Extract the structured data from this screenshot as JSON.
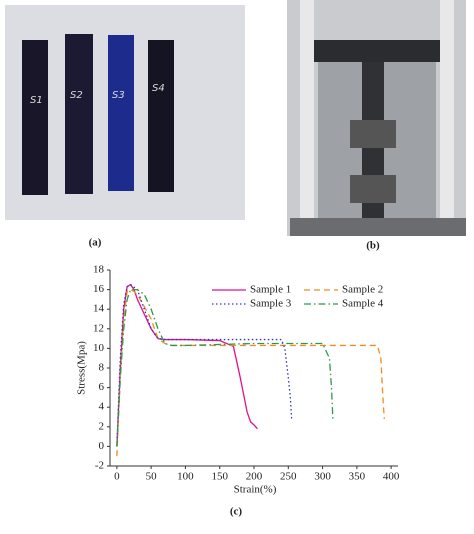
{
  "panels": {
    "a": "(a)",
    "b": "(b)",
    "c": "(c)"
  },
  "sample_strips": [
    "S1",
    "S2",
    "S3",
    "S4"
  ],
  "chart_data": {
    "type": "line",
    "xlabel": "Strain(%)",
    "ylabel": "Stress(Mpa)",
    "xlim": [
      -10,
      410
    ],
    "ylim": [
      -2,
      18
    ],
    "xticks": [
      0,
      50,
      100,
      150,
      200,
      250,
      300,
      350,
      400
    ],
    "yticks": [
      -2,
      0,
      2,
      4,
      6,
      8,
      10,
      12,
      14,
      16,
      18
    ],
    "series": [
      {
        "name": "Sample 1",
        "color": "#e0108c",
        "dash": "none",
        "x": [
          0,
          5,
          10,
          15,
          20,
          25,
          30,
          40,
          50,
          60,
          70,
          100,
          150,
          170,
          180,
          190,
          195,
          200,
          205
        ],
        "values": [
          0,
          8,
          14,
          16.3,
          16.5,
          16,
          15,
          13.5,
          12,
          11,
          10.9,
          10.9,
          10.8,
          10.2,
          7,
          3.5,
          2.5,
          2.2,
          1.8
        ]
      },
      {
        "name": "Sample 2",
        "color": "#f08c1e",
        "dash": "6,4",
        "x": [
          0,
          5,
          10,
          15,
          20,
          25,
          30,
          50,
          60,
          70,
          80,
          100,
          200,
          300,
          380,
          385,
          388,
          390
        ],
        "values": [
          -1,
          7,
          13,
          15.8,
          16,
          15.8,
          15.5,
          13,
          11,
          10.5,
          10.3,
          10.3,
          10.3,
          10.3,
          10.3,
          9,
          5,
          2.8
        ]
      },
      {
        "name": "Sample 3",
        "color": "#3030c8",
        "dash": "1.5,2.5",
        "x": [
          0,
          5,
          10,
          15,
          20,
          30,
          40,
          50,
          60,
          70,
          100,
          200,
          240,
          245,
          250,
          253,
          255
        ],
        "values": [
          0,
          9,
          14.5,
          16.3,
          16.5,
          16,
          14,
          12,
          11,
          10.9,
          10.9,
          10.9,
          10.9,
          10,
          7,
          5,
          2.7
        ]
      },
      {
        "name": "Sample 4",
        "color": "#2a9a4a",
        "dash": "7,3,1.5,3",
        "x": [
          0,
          5,
          10,
          15,
          20,
          30,
          40,
          50,
          60,
          70,
          80,
          100,
          200,
          300,
          310,
          313,
          315
        ],
        "values": [
          0,
          7,
          12,
          15,
          16,
          16,
          15.5,
          14,
          12,
          10.5,
          10.3,
          10.3,
          10.5,
          10.5,
          9,
          6,
          2.8
        ]
      }
    ]
  }
}
